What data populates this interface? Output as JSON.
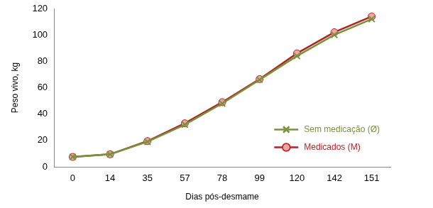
{
  "chart_data": {
    "type": "line",
    "x_label": "Dias pós-desmame",
    "y_label": "Peso vivo, kg",
    "categories": [
      "0",
      "14",
      "35",
      "57",
      "78",
      "99",
      "120",
      "142",
      "151"
    ],
    "series": [
      {
        "name": "Sem medicação (Ø)",
        "color": "#77933c",
        "marker": "x",
        "values": [
          7.5,
          9.5,
          19,
          32,
          48,
          66,
          84,
          100,
          112
        ]
      },
      {
        "name": "Medicados (M)",
        "color": "#b22222",
        "marker": "circle",
        "values": [
          7.5,
          9.5,
          19.5,
          33,
          49,
          66.5,
          86,
          102,
          114
        ]
      }
    ],
    "ylim": [
      0,
      120
    ],
    "yticks": [
      0,
      20,
      40,
      60,
      80,
      100,
      120
    ],
    "grid": false,
    "legend": "lower right"
  }
}
